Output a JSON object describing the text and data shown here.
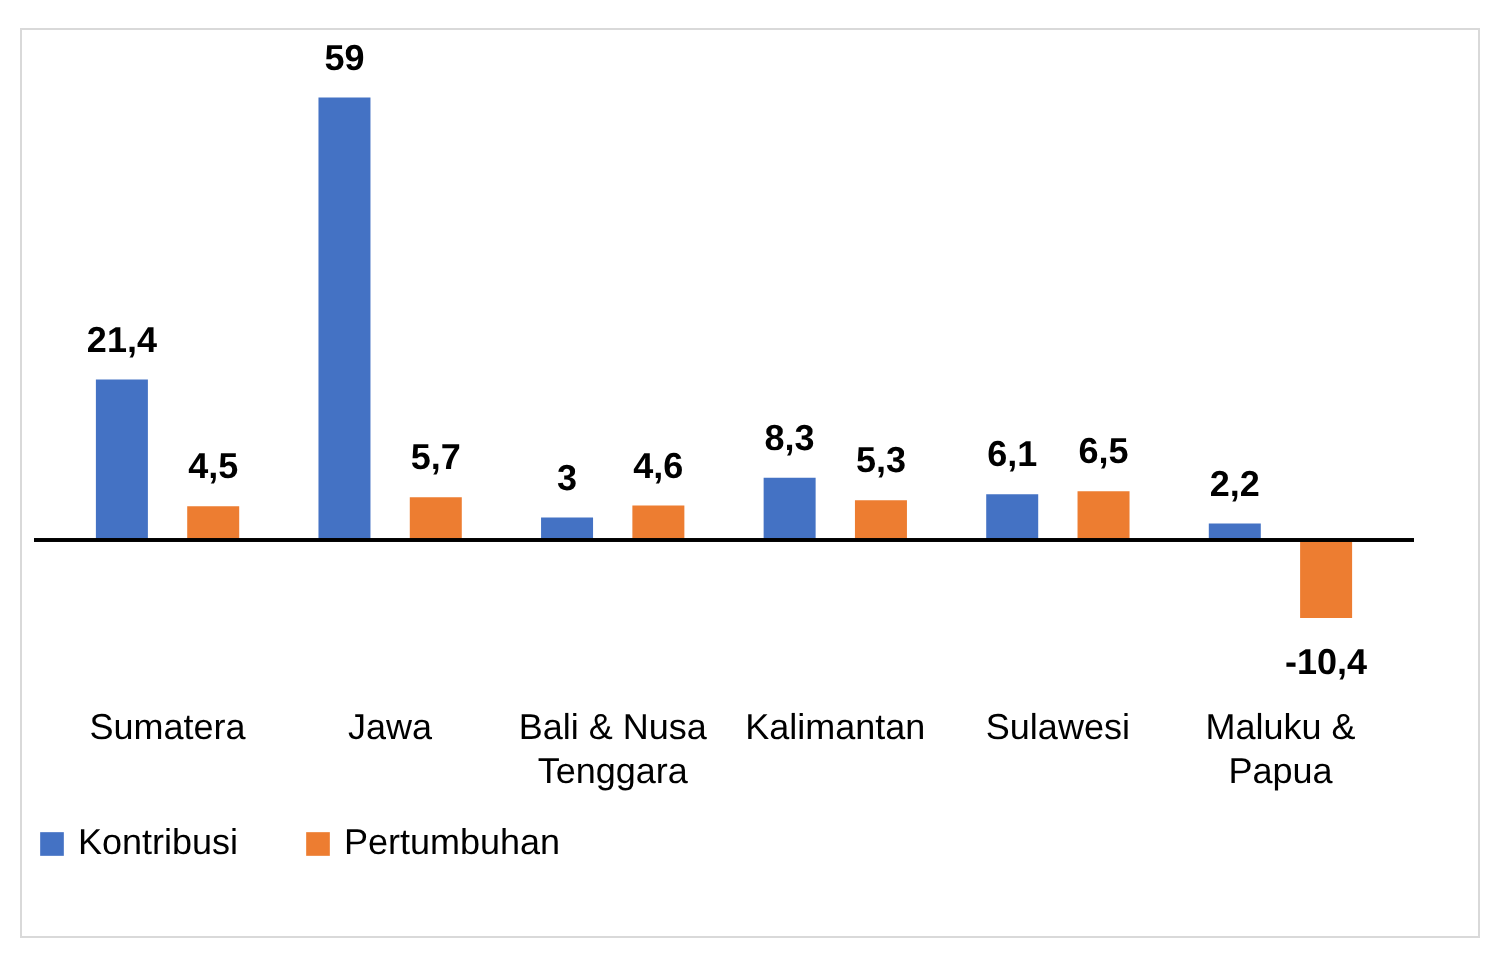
{
  "chart_data": {
    "type": "bar",
    "categories": [
      "Sumatera",
      "Jawa",
      "Bali & Nusa Tenggara",
      "Kalimantan",
      "Sulawesi",
      "Maluku & Papua"
    ],
    "series": [
      {
        "name": "Kontribusi",
        "color": "#4472c4",
        "values": [
          21.4,
          59,
          3,
          8.3,
          6.1,
          2.2
        ],
        "value_labels": [
          "21,4",
          "59",
          "3",
          "8,3",
          "6,1",
          "2,2"
        ]
      },
      {
        "name": "Pertumbuhan",
        "color": "#ed7d31",
        "values": [
          4.5,
          5.7,
          4.6,
          5.3,
          6.5,
          -10.4
        ],
        "value_labels": [
          "4,5",
          "5,7",
          "4,6",
          "5,3",
          "6,5",
          "-10,4"
        ]
      }
    ],
    "legend": "bottom",
    "grid": false
  }
}
